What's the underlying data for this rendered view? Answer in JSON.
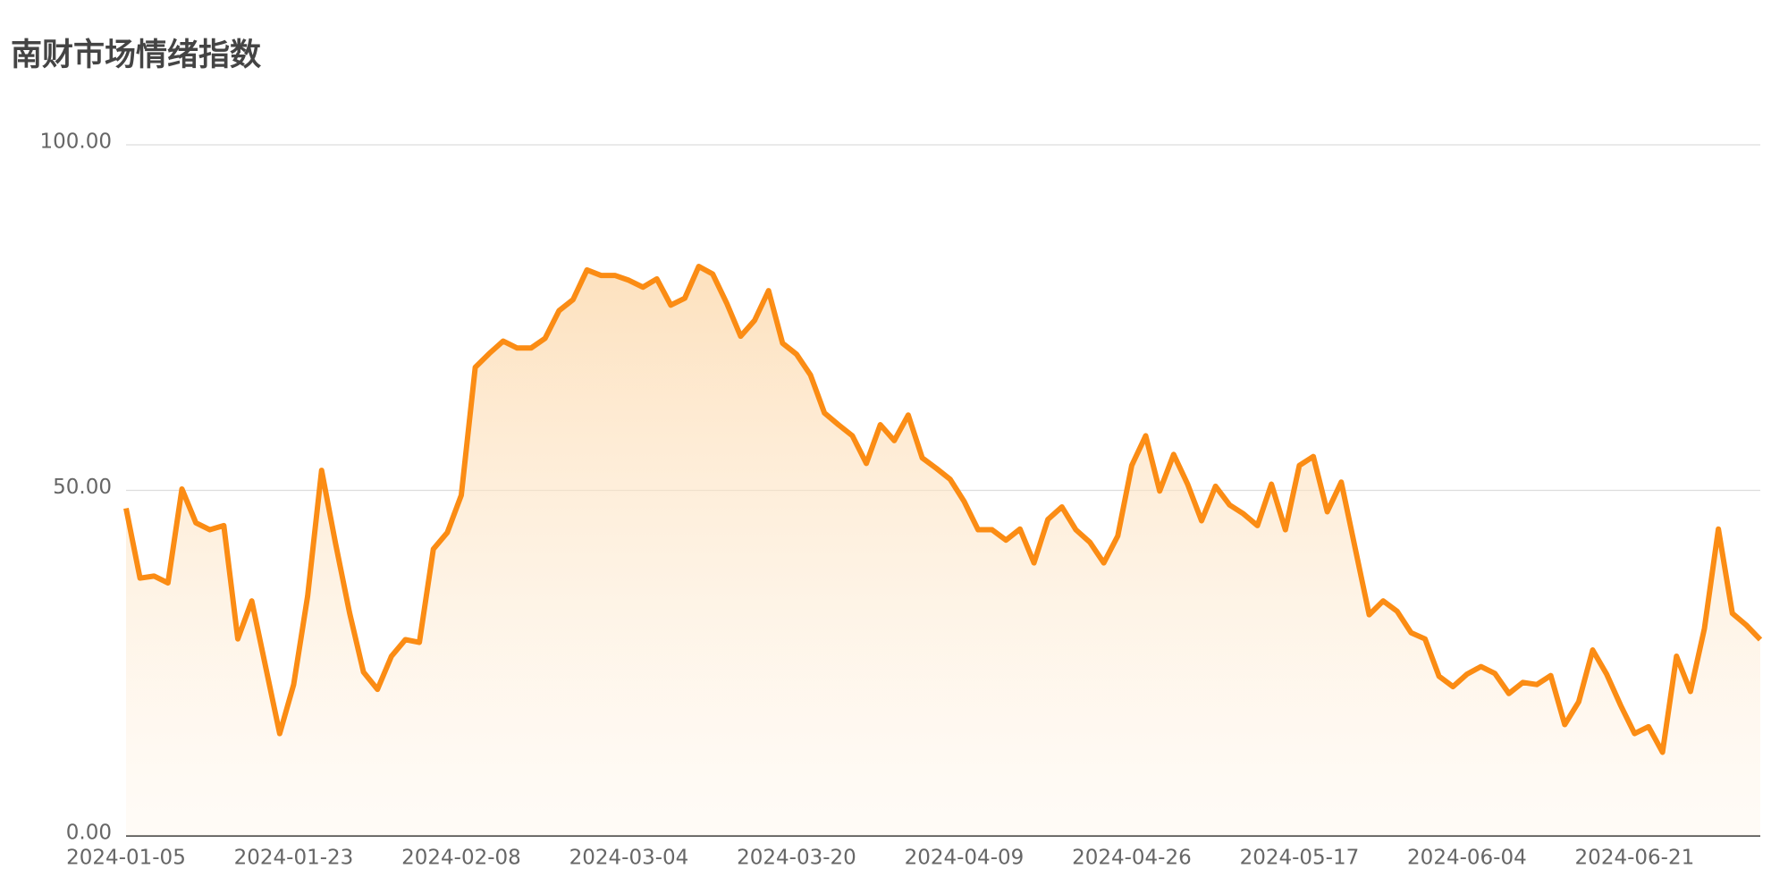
{
  "chart_data": {
    "type": "line",
    "title": "南财市场情绪指数",
    "categories": [
      "2024-01-05",
      null,
      null,
      null,
      null,
      null,
      null,
      null,
      null,
      null,
      null,
      null,
      "2024-01-23",
      null,
      null,
      null,
      null,
      null,
      null,
      null,
      null,
      null,
      null,
      null,
      "2024-02-08",
      null,
      null,
      null,
      null,
      null,
      null,
      null,
      null,
      null,
      null,
      null,
      "2024-03-04",
      null,
      null,
      null,
      null,
      null,
      null,
      null,
      null,
      null,
      null,
      null,
      "2024-03-20",
      null,
      null,
      null,
      null,
      null,
      null,
      null,
      null,
      null,
      null,
      null,
      "2024-04-09",
      null,
      null,
      null,
      null,
      null,
      null,
      null,
      null,
      null,
      null,
      null,
      "2024-04-26",
      null,
      null,
      null,
      null,
      null,
      null,
      null,
      null,
      null,
      null,
      null,
      "2024-05-17",
      null,
      null,
      null,
      null,
      null,
      null,
      null,
      null,
      null,
      null,
      null,
      "2024-06-04",
      null,
      null,
      null,
      null,
      null,
      null,
      null,
      null,
      null,
      null,
      null,
      "2024-06-21",
      null,
      null,
      null,
      null,
      null,
      null,
      null,
      null,
      null
    ],
    "values": [
      47.4,
      37.3,
      37.6,
      36.6,
      50.2,
      45.3,
      44.3,
      44.9,
      28.5,
      34.0,
      24.4,
      14.8,
      21.9,
      34.7,
      52.9,
      42.3,
      32.3,
      23.7,
      21.2,
      26.0,
      28.4,
      28.0,
      41.5,
      43.9,
      49.3,
      67.8,
      69.8,
      71.6,
      70.6,
      70.6,
      72.0,
      76.0,
      77.6,
      81.9,
      81.1,
      81.1,
      80.4,
      79.4,
      80.6,
      76.8,
      77.8,
      82.4,
      81.3,
      77.1,
      72.3,
      74.6,
      78.9,
      71.3,
      69.7,
      66.7,
      61.2,
      59.5,
      57.9,
      53.9,
      59.5,
      57.2,
      60.9,
      54.7,
      53.2,
      51.6,
      48.4,
      44.3,
      44.3,
      42.8,
      44.4,
      39.5,
      45.8,
      47.6,
      44.3,
      42.5,
      39.5,
      43.4,
      53.6,
      57.9,
      49.9,
      55.2,
      50.9,
      45.6,
      50.6,
      47.9,
      46.6,
      44.9,
      50.9,
      44.3,
      53.6,
      54.9,
      46.9,
      51.2,
      41.6,
      32.0,
      34.0,
      32.5,
      29.4,
      28.5,
      23.1,
      21.6,
      23.4,
      24.5,
      23.5,
      20.6,
      22.2,
      21.9,
      23.2,
      16.1,
      19.4,
      26.9,
      23.4,
      18.9,
      14.8,
      15.8,
      12.1,
      26.0,
      20.9,
      30.0,
      44.4,
      32.2,
      30.5,
      28.4
    ],
    "color": "#fb8c14",
    "ylim": [
      0,
      100
    ],
    "yticks": [
      {
        "value": 0,
        "label": "0.00"
      },
      {
        "value": 50,
        "label": "50.00"
      },
      {
        "value": 100,
        "label": "100.00"
      }
    ],
    "grid": true
  }
}
